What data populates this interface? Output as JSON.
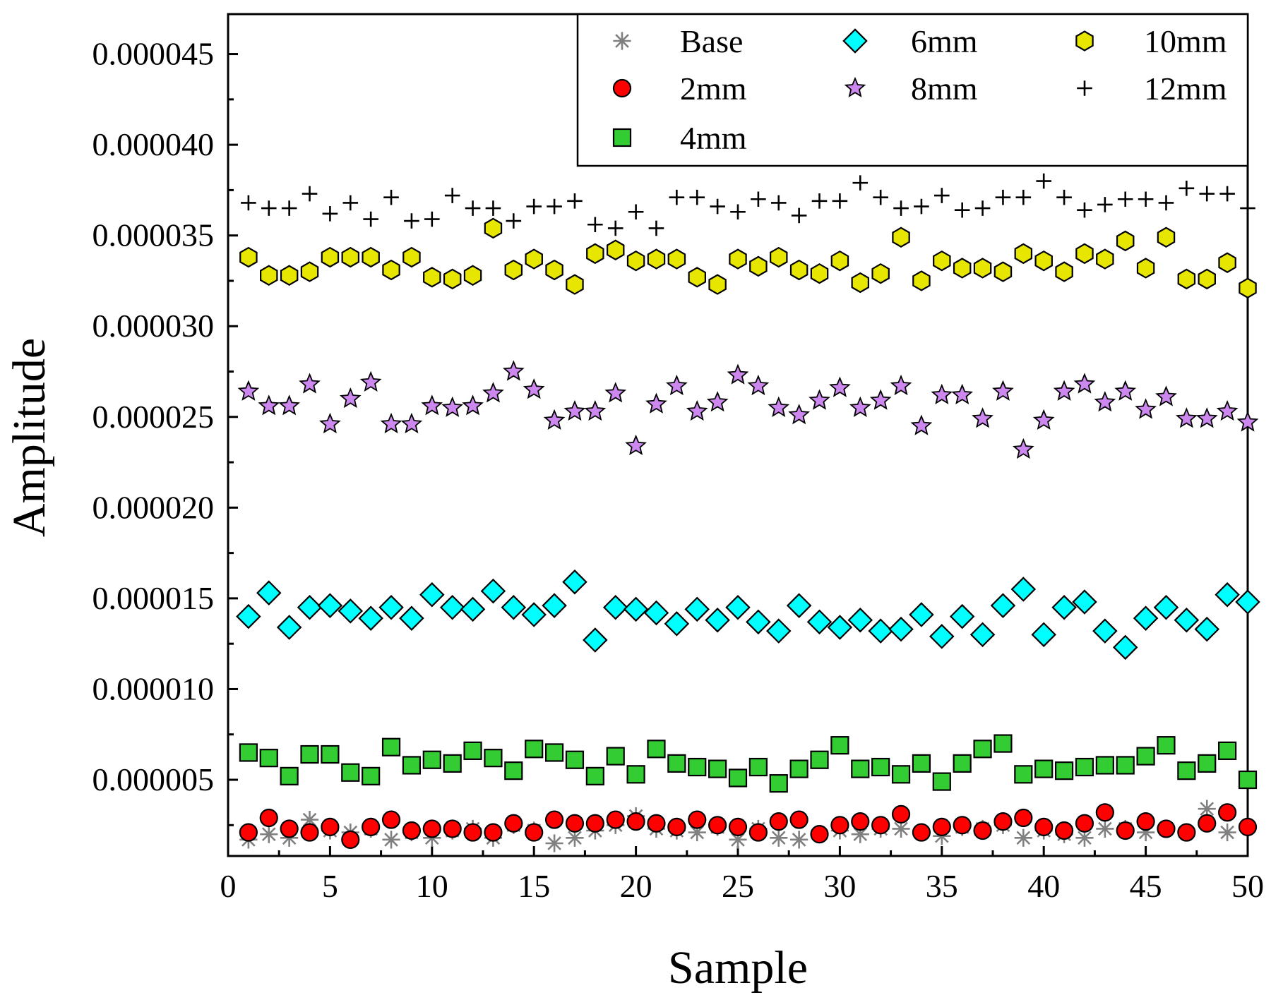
{
  "chart_data": {
    "type": "scatter",
    "title": "",
    "xlabel": "Sample",
    "ylabel": "Amplitude",
    "xlim": [
      0,
      50
    ],
    "ylim": [
      8e-07,
      4.72e-05
    ],
    "x_ticks": [
      0,
      5,
      10,
      15,
      20,
      25,
      30,
      35,
      40,
      45,
      50
    ],
    "x_tick_labels": [
      "0",
      "5",
      "10",
      "15",
      "20",
      "25",
      "30",
      "35",
      "40",
      "45",
      "50"
    ],
    "y_ticks": [
      5e-06,
      1e-05,
      1.5e-05,
      2e-05,
      2.5e-05,
      3e-05,
      3.5e-05,
      4e-05,
      4.5e-05
    ],
    "y_tick_labels": [
      "0.000005",
      "0.000010",
      "0.000015",
      "0.000020",
      "0.000025",
      "0.000030",
      "0.000035",
      "0.000040",
      "0.000045"
    ],
    "grid": false,
    "legend_position": "top-right",
    "x": [
      1,
      2,
      3,
      4,
      5,
      6,
      7,
      8,
      9,
      10,
      11,
      12,
      13,
      14,
      15,
      16,
      17,
      18,
      19,
      20,
      21,
      22,
      23,
      24,
      25,
      26,
      27,
      28,
      29,
      30,
      31,
      32,
      33,
      34,
      35,
      36,
      37,
      38,
      39,
      40,
      41,
      42,
      43,
      44,
      45,
      46,
      47,
      48,
      49,
      50
    ],
    "series": [
      {
        "name": "Base",
        "marker": "asterisk",
        "color": "#808080",
        "values": [
          1.7,
          2.0,
          1.8,
          2.8,
          2.2,
          2.1,
          2.3,
          1.7,
          2.1,
          1.8,
          2.2,
          2.3,
          1.8,
          2.5,
          2.2,
          1.5,
          1.8,
          2.2,
          2.5,
          3.0,
          2.3,
          2.2,
          2.1,
          2.4,
          1.7,
          2.3,
          1.8,
          1.7,
          2.0,
          2.2,
          2.0,
          2.3,
          2.3,
          2.1,
          1.9,
          2.4,
          2.3,
          2.5,
          1.8,
          2.2,
          2.0,
          1.8,
          2.3,
          2.3,
          2.1,
          2.3,
          2.1,
          3.4,
          2.1,
          2.4
        ]
      },
      {
        "name": "2mm",
        "marker": "circle",
        "color": "#ff0000",
        "values": [
          2.1,
          2.9,
          2.3,
          2.1,
          2.4,
          1.7,
          2.4,
          2.8,
          2.2,
          2.3,
          2.3,
          2.1,
          2.1,
          2.6,
          2.1,
          2.8,
          2.6,
          2.6,
          2.8,
          2.7,
          2.6,
          2.4,
          2.8,
          2.5,
          2.4,
          2.1,
          2.7,
          2.8,
          2.0,
          2.5,
          2.7,
          2.5,
          3.1,
          2.1,
          2.4,
          2.5,
          2.2,
          2.7,
          2.9,
          2.4,
          2.2,
          2.6,
          3.2,
          2.2,
          2.7,
          2.3,
          2.1,
          2.6,
          3.2,
          2.4
        ]
      },
      {
        "name": "4mm",
        "marker": "square",
        "color": "#33cc33",
        "values": [
          6.5,
          6.2,
          5.2,
          6.4,
          6.4,
          5.4,
          5.2,
          6.8,
          5.8,
          6.1,
          5.9,
          6.6,
          6.2,
          5.5,
          6.7,
          6.5,
          6.1,
          5.2,
          6.3,
          5.3,
          6.7,
          5.9,
          5.7,
          5.6,
          5.1,
          5.7,
          4.8,
          5.6,
          6.1,
          6.9,
          5.6,
          5.7,
          5.3,
          5.9,
          4.9,
          5.9,
          6.7,
          7.0,
          5.3,
          5.6,
          5.5,
          5.7,
          5.8,
          5.8,
          6.3,
          6.9,
          5.5,
          5.9,
          6.6,
          5.0
        ]
      },
      {
        "name": "6mm",
        "marker": "diamond",
        "color": "#00ffff",
        "values": [
          14.0,
          15.3,
          13.4,
          14.5,
          14.6,
          14.3,
          13.9,
          14.5,
          13.9,
          15.2,
          14.5,
          14.4,
          15.4,
          14.5,
          14.1,
          14.6,
          15.9,
          12.7,
          14.5,
          14.4,
          14.2,
          13.6,
          14.4,
          13.8,
          14.5,
          13.7,
          13.2,
          14.6,
          13.7,
          13.4,
          13.8,
          13.2,
          13.3,
          14.1,
          12.9,
          14.0,
          13.0,
          14.6,
          15.5,
          13.0,
          14.5,
          14.8,
          13.2,
          12.3,
          13.9,
          14.5,
          13.8,
          13.3,
          15.2,
          14.8
        ]
      },
      {
        "name": "8mm",
        "marker": "star",
        "color": "#cc88ee",
        "values": [
          26.4,
          25.6,
          25.6,
          26.8,
          24.6,
          26.0,
          26.9,
          24.6,
          24.6,
          25.6,
          25.5,
          25.6,
          26.3,
          27.5,
          26.5,
          24.8,
          25.3,
          25.3,
          26.3,
          23.4,
          25.7,
          26.7,
          25.3,
          25.8,
          27.3,
          26.7,
          25.5,
          25.1,
          25.9,
          26.6,
          25.5,
          25.9,
          26.7,
          24.5,
          26.2,
          26.2,
          24.9,
          26.4,
          23.2,
          24.8,
          26.4,
          26.8,
          25.8,
          26.4,
          25.4,
          26.1,
          24.9,
          24.9,
          25.3,
          24.7
        ]
      },
      {
        "name": "10mm",
        "marker": "hexagon",
        "color": "#e6e600",
        "values": [
          33.8,
          32.8,
          32.8,
          33.0,
          33.8,
          33.8,
          33.8,
          33.1,
          33.8,
          32.7,
          32.6,
          32.8,
          35.4,
          33.1,
          33.7,
          33.1,
          32.3,
          34.0,
          34.2,
          33.6,
          33.7,
          33.7,
          32.7,
          32.3,
          33.7,
          33.3,
          33.8,
          33.1,
          32.9,
          33.6,
          32.4,
          32.9,
          34.9,
          32.5,
          33.6,
          33.2,
          33.2,
          33.0,
          34.0,
          33.6,
          33.0,
          34.0,
          33.7,
          34.7,
          33.2,
          34.9,
          32.6,
          32.6,
          33.5,
          32.1
        ]
      },
      {
        "name": "12mm",
        "marker": "plus",
        "color": "#000000",
        "values": [
          36.8,
          36.5,
          36.5,
          37.3,
          36.2,
          36.8,
          35.9,
          37.1,
          35.8,
          35.9,
          37.2,
          36.5,
          36.5,
          35.8,
          36.6,
          36.6,
          36.9,
          35.6,
          35.4,
          36.3,
          35.4,
          37.1,
          37.1,
          36.6,
          36.3,
          37.0,
          36.8,
          36.1,
          36.9,
          36.9,
          37.9,
          37.1,
          36.5,
          36.6,
          37.2,
          36.4,
          36.5,
          37.1,
          37.1,
          38.0,
          37.1,
          36.4,
          36.7,
          37.0,
          37.0,
          36.8,
          37.6,
          37.3,
          37.3,
          36.5
        ]
      }
    ],
    "value_scale_note": "values are in units of 1e-6 (micro)"
  }
}
